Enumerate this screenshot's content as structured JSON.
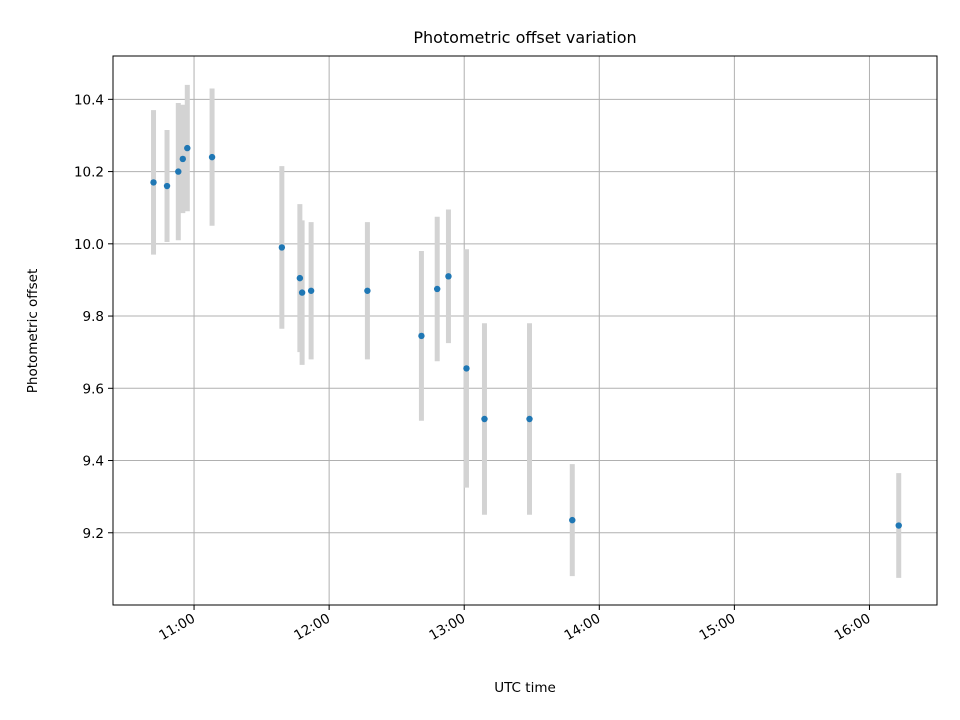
{
  "chart_data": {
    "type": "scatter",
    "title": "Photometric offset variation",
    "xlabel": "UTC time",
    "ylabel": "Photometric offset",
    "x_ticks": [
      "11:00",
      "12:00",
      "13:00",
      "14:00",
      "15:00",
      "16:00"
    ],
    "y_ticks": [
      "9.2",
      "9.4",
      "9.6",
      "9.8",
      "10.0",
      "10.2",
      "10.4"
    ],
    "xlim": [
      "10:24",
      "16:30"
    ],
    "ylim": [
      9.0,
      10.52
    ],
    "grid": true,
    "colors": {
      "point": "#1f77b4",
      "errorbar": "#d3d3d3"
    },
    "points": [
      {
        "x": "10:42",
        "y": 10.17,
        "err": 0.2
      },
      {
        "x": "10:48",
        "y": 10.16,
        "err": 0.155
      },
      {
        "x": "10:53",
        "y": 10.2,
        "err": 0.19
      },
      {
        "x": "10:55",
        "y": 10.235,
        "err": 0.15
      },
      {
        "x": "10:57",
        "y": 10.265,
        "err": 0.175
      },
      {
        "x": "11:08",
        "y": 10.24,
        "err": 0.19
      },
      {
        "x": "11:39",
        "y": 9.99,
        "err": 0.225
      },
      {
        "x": "11:47",
        "y": 9.905,
        "err": 0.205
      },
      {
        "x": "11:48",
        "y": 9.865,
        "err": 0.2
      },
      {
        "x": "11:52",
        "y": 9.87,
        "err": 0.19
      },
      {
        "x": "12:17",
        "y": 9.87,
        "err": 0.19
      },
      {
        "x": "12:41",
        "y": 9.745,
        "err": 0.235
      },
      {
        "x": "12:48",
        "y": 9.875,
        "err": 0.2
      },
      {
        "x": "12:53",
        "y": 9.91,
        "err": 0.185
      },
      {
        "x": "13:01",
        "y": 9.655,
        "err": 0.33
      },
      {
        "x": "13:09",
        "y": 9.515,
        "err": 0.265
      },
      {
        "x": "13:29",
        "y": 9.515,
        "err": 0.265
      },
      {
        "x": "13:48",
        "y": 9.235,
        "err": 0.155
      },
      {
        "x": "16:13",
        "y": 9.22,
        "err": 0.145
      }
    ]
  }
}
